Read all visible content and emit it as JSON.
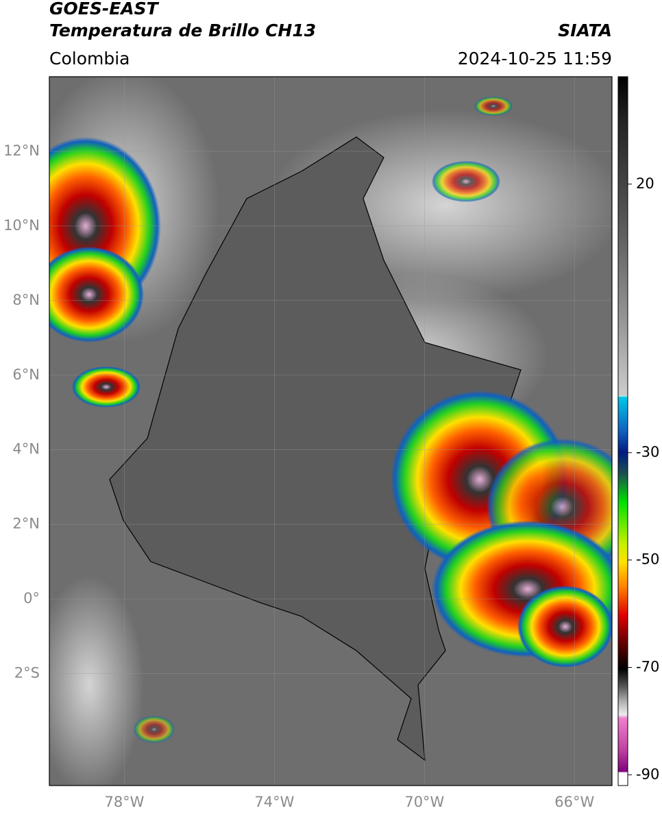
{
  "header": {
    "title": "GOES-EAST",
    "subtitle": "Temperatura de Brillo CH13",
    "agency": "SIATA",
    "region": "Colombia",
    "datetime": "2024-10-25 11:59"
  },
  "map": {
    "lon_range": [
      -80,
      -65
    ],
    "lat_range": [
      -5,
      14
    ],
    "lat_ticks": [
      {
        "value": 12,
        "label": "12°N"
      },
      {
        "value": 10,
        "label": "10°N"
      },
      {
        "value": 8,
        "label": "8°N"
      },
      {
        "value": 6,
        "label": "6°N"
      },
      {
        "value": 4,
        "label": "4°N"
      },
      {
        "value": 2,
        "label": "2°N"
      },
      {
        "value": 0,
        "label": "0°"
      },
      {
        "value": -2,
        "label": "2°S"
      }
    ],
    "lon_ticks": [
      {
        "value": -78,
        "label": "78°W"
      },
      {
        "value": -74,
        "label": "74°W"
      },
      {
        "value": -70,
        "label": "70°W"
      },
      {
        "value": -66,
        "label": "66°W"
      }
    ]
  },
  "colorbar": {
    "clim": [
      -92,
      40
    ],
    "ticks": [
      20,
      -30,
      -50,
      -70,
      -90
    ]
  }
}
